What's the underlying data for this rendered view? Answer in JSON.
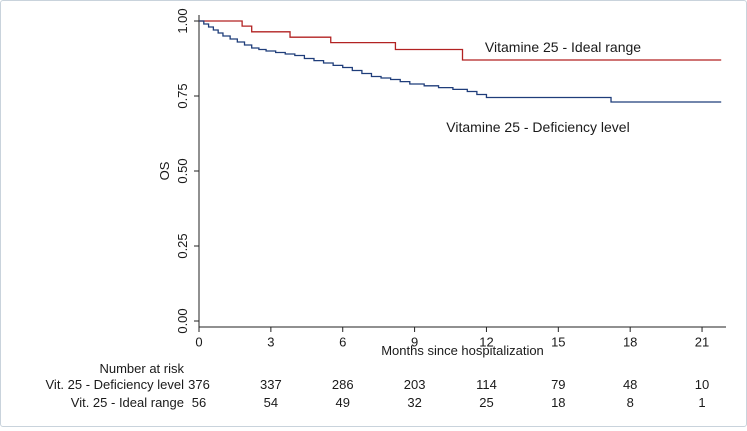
{
  "chart_data": {
    "type": "line",
    "title": "",
    "xlabel": "Months since hospitalization",
    "ylabel": "OS",
    "xlim": [
      0,
      22
    ],
    "ylim": [
      0,
      1
    ],
    "x_ticks": [
      0,
      3,
      6,
      9,
      12,
      15,
      18,
      21
    ],
    "y_ticks": [
      "0.00",
      "0.25",
      "0.50",
      "0.75",
      "1.00"
    ],
    "grid": false,
    "series": [
      {
        "name": "Vitamine 25 - Ideal range",
        "color": "#b22222",
        "x": [
          0,
          1.8,
          2.2,
          3.8,
          5.5,
          8.2,
          11,
          21.8
        ],
        "y": [
          1.0,
          0.983,
          0.964,
          0.946,
          0.928,
          0.905,
          0.87,
          0.87
        ]
      },
      {
        "name": "Vitamine 25 - Deficiency level",
        "color": "#1f3d7a",
        "x": [
          0,
          0.2,
          0.4,
          0.6,
          0.8,
          1.0,
          1.3,
          1.6,
          1.9,
          2.2,
          2.5,
          2.8,
          3.2,
          3.6,
          4.0,
          4.4,
          4.8,
          5.2,
          5.6,
          6.0,
          6.4,
          6.8,
          7.2,
          7.6,
          8.0,
          8.4,
          8.8,
          9.4,
          10.0,
          10.6,
          11.2,
          11.6,
          12.0,
          12.5,
          14.0,
          15.5,
          17.2,
          21.8
        ],
        "y": [
          1.0,
          0.99,
          0.98,
          0.97,
          0.96,
          0.95,
          0.94,
          0.93,
          0.92,
          0.91,
          0.905,
          0.9,
          0.895,
          0.89,
          0.885,
          0.875,
          0.868,
          0.86,
          0.852,
          0.845,
          0.835,
          0.825,
          0.815,
          0.81,
          0.805,
          0.798,
          0.79,
          0.784,
          0.778,
          0.772,
          0.765,
          0.755,
          0.745,
          0.745,
          0.745,
          0.745,
          0.73,
          0.73
        ]
      }
    ],
    "risk_table": {
      "title": "Number at risk",
      "times": [
        0,
        3,
        6,
        9,
        12,
        15,
        18,
        21
      ],
      "rows": [
        {
          "label": "Vit. 25 - Deficiency level",
          "counts": [
            "376",
            "337",
            "286",
            "203",
            "114",
            "79",
            "48",
            "10"
          ]
        },
        {
          "label": "Vit. 25 - Ideal range",
          "counts": [
            "56",
            "54",
            "49",
            "32",
            "25",
            "18",
            "8",
            "1"
          ]
        }
      ]
    }
  }
}
